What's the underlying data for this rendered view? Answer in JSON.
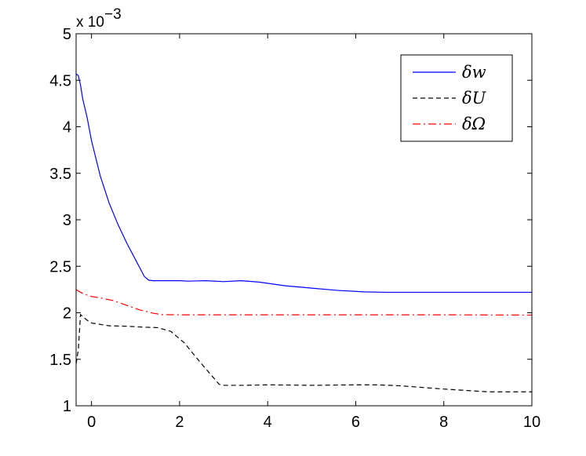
{
  "chart_data": {
    "type": "line",
    "title": "",
    "xlabel": "",
    "ylabel": "",
    "xlim": [
      -0.35,
      10
    ],
    "ylim": [
      1,
      5
    ],
    "y_scale_factor": "x 10",
    "y_scale_exponent": "−3",
    "grid": false,
    "legend_position": "top-right",
    "x_ticks": [
      0,
      2,
      4,
      6,
      8,
      10
    ],
    "x_tick_labels": [
      "0",
      "2",
      "4",
      "6",
      "8",
      "10"
    ],
    "y_ticks": [
      1,
      1.5,
      2,
      2.5,
      3,
      3.5,
      4,
      4.5,
      5
    ],
    "y_tick_labels": [
      "1",
      "1.5",
      "2",
      "2.5",
      "3",
      "3.5",
      "4",
      "4.5",
      "5"
    ],
    "series": [
      {
        "name": "δw",
        "color": "#0000ff",
        "dash": "solid",
        "x": [
          -0.35,
          -0.3,
          -0.25,
          -0.2,
          -0.1,
          0,
          0.2,
          0.4,
          0.6,
          0.8,
          1.0,
          1.2,
          1.3,
          1.4,
          1.6,
          2.0,
          2.2,
          2.6,
          3.0,
          3.4,
          3.8,
          4.4,
          5.0,
          5.6,
          6.2,
          6.7,
          7.5,
          8.5,
          9.5,
          10
        ],
        "y": [
          4.57,
          4.55,
          4.45,
          4.3,
          4.1,
          3.85,
          3.47,
          3.18,
          2.95,
          2.75,
          2.57,
          2.39,
          2.35,
          2.345,
          2.345,
          2.345,
          2.34,
          2.345,
          2.335,
          2.345,
          2.33,
          2.29,
          2.265,
          2.24,
          2.225,
          2.22,
          2.22,
          2.22,
          2.22,
          2.22
        ]
      },
      {
        "name": "δU",
        "color": "#000000",
        "dash": "dashed",
        "x": [
          -0.35,
          -0.3,
          -0.25,
          -0.2,
          -0.1,
          0,
          0.4,
          0.8,
          1.2,
          1.5,
          1.8,
          2.1,
          2.5,
          2.9,
          3.0,
          3.5,
          4.0,
          5.0,
          6.0,
          6.5,
          7.0,
          8.0,
          9.0,
          10
        ],
        "y": [
          1.45,
          1.6,
          1.98,
          1.96,
          1.92,
          1.89,
          1.86,
          1.855,
          1.845,
          1.84,
          1.8,
          1.68,
          1.45,
          1.23,
          1.22,
          1.22,
          1.225,
          1.22,
          1.225,
          1.225,
          1.215,
          1.18,
          1.15,
          1.15
        ]
      },
      {
        "name": "δΩ",
        "color": "#ff0000",
        "dash": "dashdot",
        "x": [
          -0.35,
          -0.25,
          -0.1,
          0,
          0.2,
          0.5,
          0.8,
          1.1,
          1.4,
          1.6,
          2.0,
          4.0,
          6.0,
          8.0,
          10
        ],
        "y": [
          2.25,
          2.22,
          2.19,
          2.175,
          2.16,
          2.13,
          2.08,
          2.03,
          1.995,
          1.98,
          1.978,
          1.978,
          1.978,
          1.978,
          1.975
        ]
      }
    ]
  }
}
